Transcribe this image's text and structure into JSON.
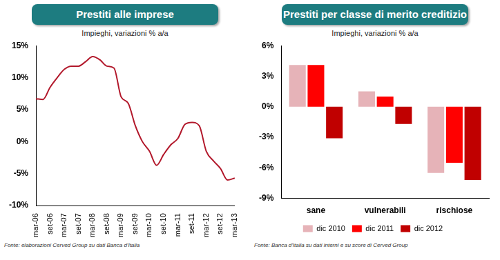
{
  "chart_data": [
    {
      "type": "line",
      "title": "Prestiti alle imprese",
      "subtitle": "Impieghi, variazioni % a/a",
      "source": "Fonte: elaborazioni Cerved Group su dati Banca d'Italia",
      "categories": [
        "mar-06",
        null,
        "set-06",
        null,
        "mar-07",
        null,
        "set-07",
        null,
        "mar-08",
        null,
        "set-08",
        null,
        "mar-09",
        null,
        "set-09",
        null,
        "mar-10",
        null,
        "set-10",
        null,
        "mar-11",
        null,
        "set-11",
        null,
        "mar-12",
        null,
        "set-12",
        null,
        "mar-13"
      ],
      "values": [
        6.7,
        6.6,
        8.5,
        10.0,
        11.3,
        11.8,
        11.8,
        12.5,
        13.3,
        12.8,
        11.8,
        11.5,
        7.0,
        6.0,
        2.5,
        0.0,
        -1.5,
        -3.7,
        -2.0,
        -0.5,
        0.5,
        2.7,
        3.0,
        2.5,
        -1.5,
        -3.0,
        -4.2,
        -6.0,
        -5.7
      ],
      "color": "#b2182b",
      "ylim": [
        -10,
        15
      ],
      "yticks": [
        {
          "value": -10,
          "label": "-10%"
        },
        {
          "value": -5,
          "label": "-5%"
        },
        {
          "value": 0,
          "label": "0%"
        },
        {
          "value": 5,
          "label": "5%"
        },
        {
          "value": 10,
          "label": "10%"
        },
        {
          "value": 15,
          "label": "15%"
        }
      ],
      "grid": false
    },
    {
      "type": "bar",
      "title": "Prestiti per classe di merito creditizio",
      "subtitle": "Impieghi, variazioni % a/a",
      "source": "Fonte: Banca d'Italia su dati interni e su score di Cerved Group",
      "categories": [
        "sane",
        "vulnerabili",
        "rischiose"
      ],
      "series": [
        {
          "name": "dic 2010",
          "color": "#e6b3b8",
          "values": [
            4.1,
            1.5,
            -6.5
          ]
        },
        {
          "name": "dic 2011",
          "color": "#ff0000",
          "values": [
            4.1,
            1.0,
            -5.5
          ]
        },
        {
          "name": "dic 2012",
          "color": "#c00000",
          "values": [
            -3.1,
            -1.7,
            -7.2
          ]
        }
      ],
      "ylim": [
        -9,
        6
      ],
      "yticks": [
        {
          "value": -9,
          "label": "-9%"
        },
        {
          "value": -6,
          "label": "-6%"
        },
        {
          "value": -3,
          "label": "-3%"
        },
        {
          "value": 0,
          "label": "0%"
        },
        {
          "value": 3,
          "label": "3%"
        },
        {
          "value": 6,
          "label": "6%"
        }
      ],
      "grid": false,
      "legend": "bottom"
    }
  ]
}
